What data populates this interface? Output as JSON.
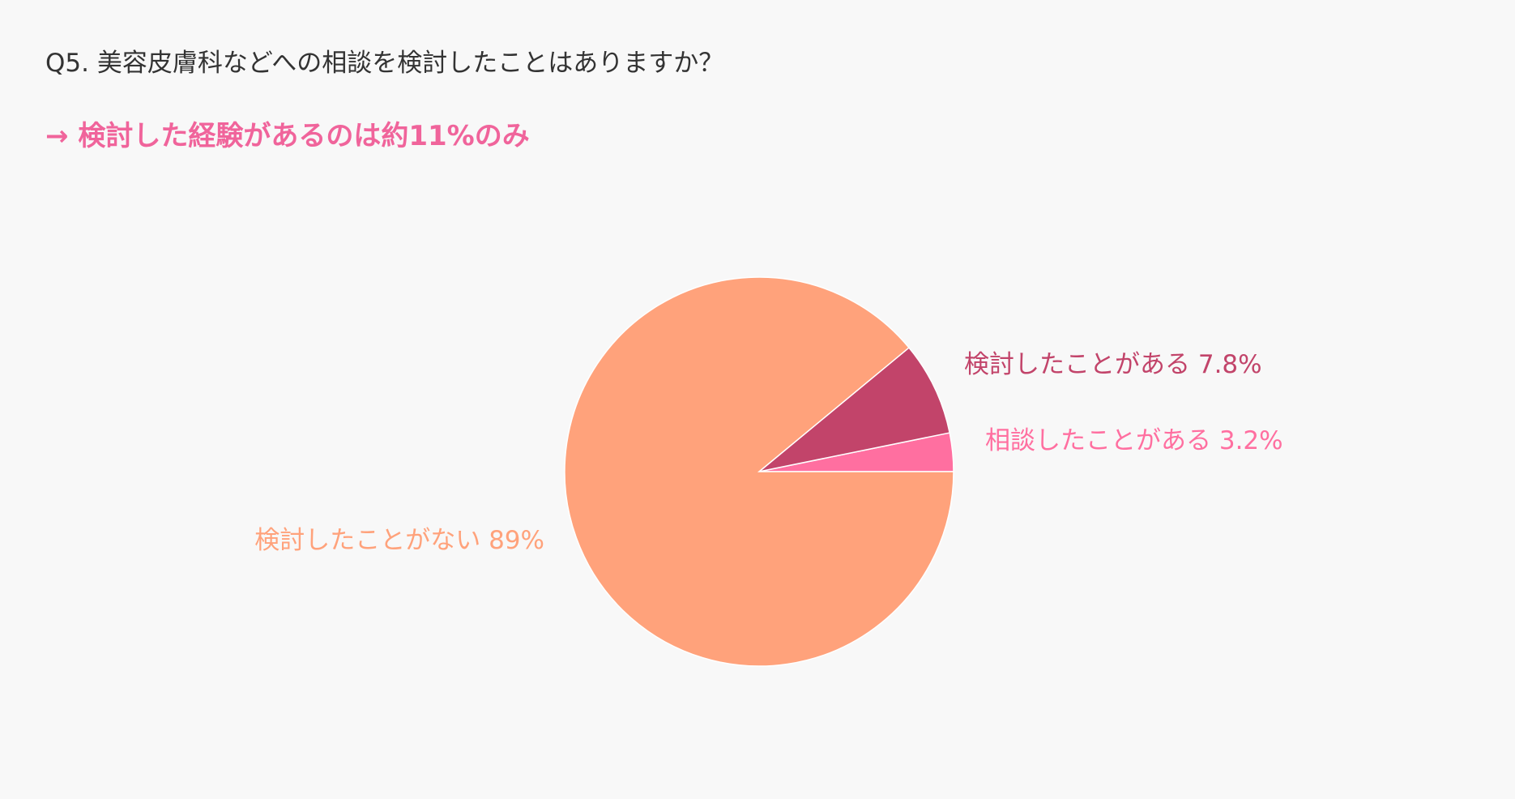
{
  "question": "Q5. 美容皮膚科などへの相談を検討したことはありますか？",
  "headline": "→ 検討した経験があるのは約11%のみ",
  "colors": {
    "accent": "#f0649b",
    "background": "#f8f8f8",
    "question_text": "#333333"
  },
  "chart_data": {
    "type": "pie",
    "start_angle": "3 o'clock, counter-clockwise",
    "slices": [
      {
        "label": "相談したことがある",
        "value": 3.2,
        "value_label": "3.2%",
        "color": "#ff6fa0"
      },
      {
        "label": "検討したことがある",
        "value": 7.8,
        "value_label": "7.8%",
        "color": "#c2446a"
      },
      {
        "label": "検討したことがない",
        "value": 89,
        "value_label": "89%",
        "color": "#ffa27b"
      }
    ]
  }
}
